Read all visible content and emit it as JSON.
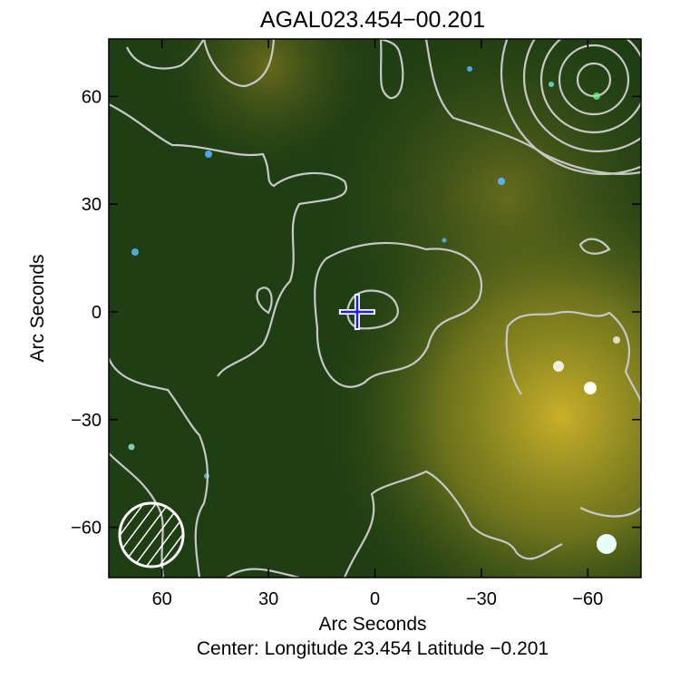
{
  "chart_data": {
    "type": "image",
    "title": "AGAL023.454−00.201",
    "xlabel": "Arc Seconds",
    "ylabel": "Arc Seconds",
    "caption": "Center:  Longitude 23.454 Latitude −0.201",
    "xlim": [
      75,
      -75
    ],
    "ylim": [
      -74,
      76
    ],
    "xticks": [
      60,
      30,
      0,
      {
        "value": -30,
        "label": "−30"
      },
      {
        "value": -60,
        "label": "−60"
      }
    ],
    "yticks": [
      {
        "value": -60,
        "label": "−60"
      },
      {
        "value": -30,
        "label": "−30"
      },
      0,
      30,
      60
    ],
    "marker": {
      "x": 5,
      "y": 0
    }
  }
}
